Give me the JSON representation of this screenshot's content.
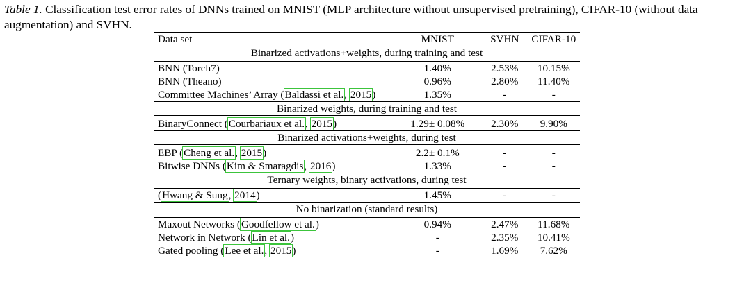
{
  "caption": {
    "label": "Table 1.",
    "text": " Classification test error rates of DNNs trained on MNIST (MLP architecture without unsupervised pretraining), CIFAR-10 (without data augmentation) and SVHN."
  },
  "columns": [
    "Data set",
    "MNIST",
    "SVHN",
    "CIFAR-10"
  ],
  "sections": [
    {
      "title": "Binarized activations+weights, during training and test",
      "rows": [
        {
          "name": "BNN (Torch7)",
          "cite": [],
          "mnist": "1.40%",
          "svhn": "2.53%",
          "cifar": "10.15%"
        },
        {
          "name": "BNN (Theano)",
          "cite": [],
          "mnist": "0.96%",
          "svhn": "2.80%",
          "cifar": "11.40%"
        },
        {
          "name": "Committee Machines’ Array (",
          "cite": [
            "Baldassi et al.",
            "2015"
          ],
          "after": ")",
          "mnist": "1.35%",
          "svhn": "-",
          "cifar": "-"
        }
      ]
    },
    {
      "title": "Binarized weights, during training and test",
      "rows": [
        {
          "name": "BinaryConnect (",
          "cite": [
            "Courbariaux et al.",
            "2015"
          ],
          "after": ")",
          "mnist": "1.29± 0.08%",
          "svhn": "2.30%",
          "cifar": "9.90%"
        }
      ]
    },
    {
      "title": "Binarized activations+weights, during test",
      "rows": [
        {
          "name": "EBP (",
          "cite": [
            "Cheng et al.",
            "2015"
          ],
          "after": ")",
          "mnist": "2.2± 0.1%",
          "svhn": "-",
          "cifar": "-"
        },
        {
          "name": "Bitwise DNNs (",
          "cite": [
            "Kim & Smaragdis",
            "2016"
          ],
          "after": ")",
          "mnist": "1.33%",
          "svhn": "-",
          "cifar": "-"
        }
      ]
    },
    {
      "title": "Ternary weights, binary activations, during test",
      "rows": [
        {
          "name": "(",
          "cite": [
            "Hwang & Sung",
            "2014"
          ],
          "after": ")",
          "mnist": "1.45%",
          "svhn": "-",
          "cifar": "-"
        }
      ]
    },
    {
      "title": "No binarization (standard results)",
      "rows": [
        {
          "name": "Maxout Networks (",
          "cite": [
            "Goodfellow et al."
          ],
          "after": ")",
          "mnist": "0.94%",
          "svhn": "2.47%",
          "cifar": "11.68%"
        },
        {
          "name": "Network in Network (",
          "cite": [
            "Lin et al."
          ],
          "after": ")",
          "mnist": "-",
          "svhn": "2.35%",
          "cifar": "10.41%"
        },
        {
          "name": "Gated pooling (",
          "cite": [
            "Lee et al.",
            "2015"
          ],
          "after": ")",
          "mnist": "-",
          "svhn": "1.69%",
          "cifar": "7.62%"
        }
      ]
    }
  ]
}
